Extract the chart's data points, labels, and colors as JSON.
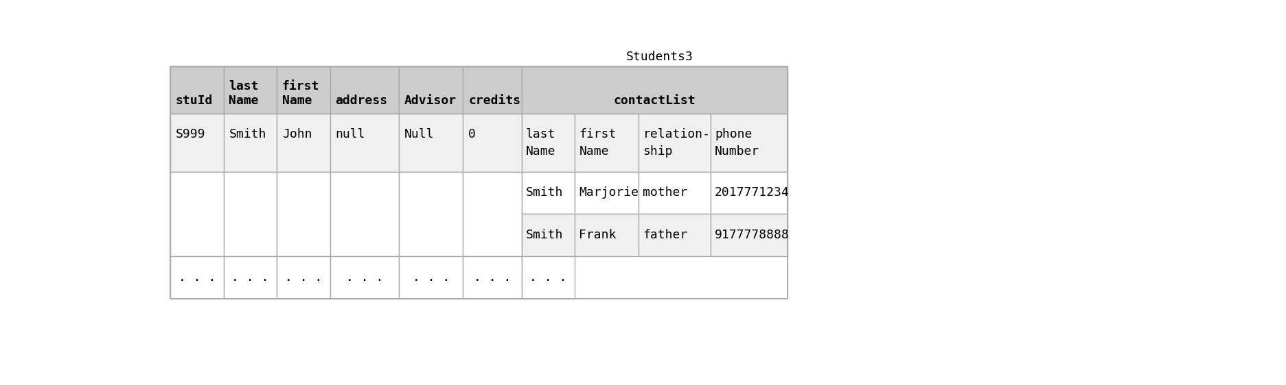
{
  "title": "Students3",
  "title_fontsize": 13,
  "font_family": "monospace",
  "background_color": "#ffffff",
  "header_bg": "#cccccc",
  "data_bg": "#f0f0f0",
  "white_bg": "#ffffff",
  "border_color": "#aaaaaa",
  "main_col_headers": [
    "stuId",
    "last\nName",
    "first\nName",
    "address",
    "Advisor",
    "credits"
  ],
  "contact_header": "contactList",
  "contact_col_headers": [
    "last\nName",
    "first\nName",
    "relation-\nship",
    "phone\nNumber"
  ],
  "data_row": [
    "S999",
    "Smith",
    "John",
    "null",
    "Null",
    "0"
  ],
  "contact_rows": [
    [
      "Smith",
      "Marjorie",
      "mother",
      "2017771234"
    ],
    [
      "Smith",
      "Frank",
      "father",
      "9177778888"
    ]
  ],
  "dots": ". . .",
  "figsize": [
    18.74,
    5.62
  ],
  "dpi": 100
}
